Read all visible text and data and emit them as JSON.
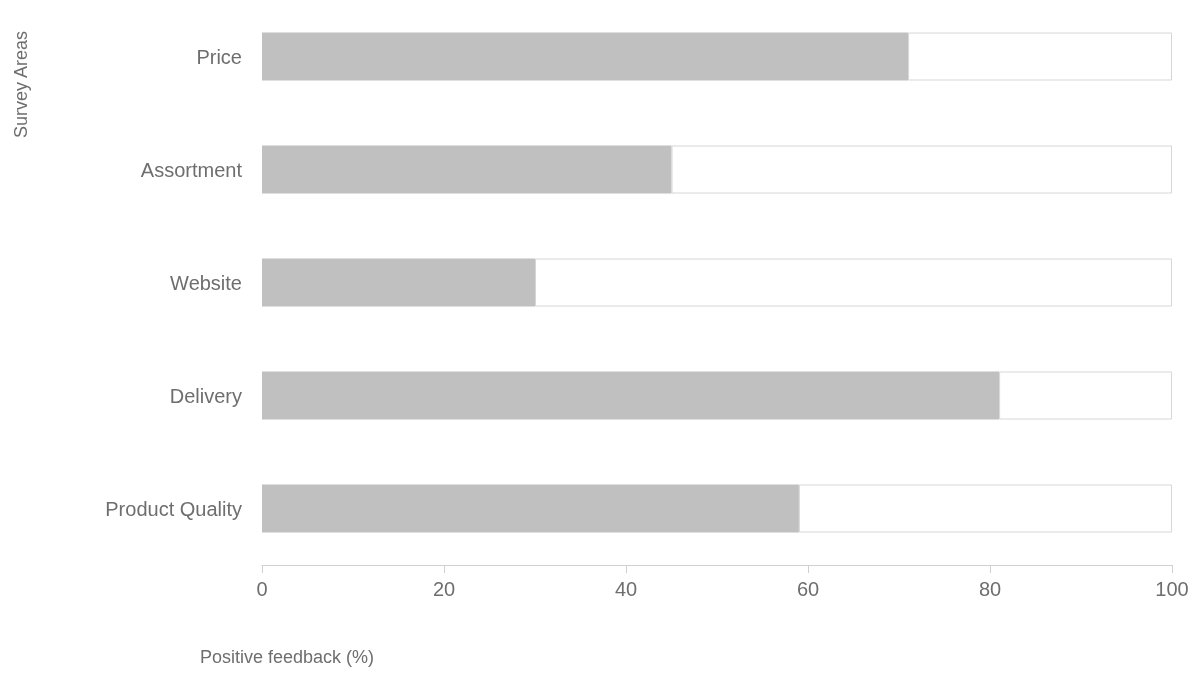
{
  "chart_data": {
    "type": "bar",
    "orientation": "horizontal",
    "stacked": true,
    "xlabel": "Positive feedback (%)",
    "ylabel": "Survey Areas",
    "categories": [
      "Price",
      "Assortment",
      "Website",
      "Delivery",
      "Product Quality"
    ],
    "series": [
      {
        "color": "#c0c0c0",
        "values": [
          71,
          45,
          30,
          81,
          59
        ]
      },
      {
        "color": "#ffffff",
        "values": [
          29,
          55,
          70,
          19,
          41
        ]
      }
    ],
    "xlim": [
      0,
      100
    ],
    "xticks": [
      0,
      20,
      40,
      60,
      80,
      100
    ],
    "grid": false
  }
}
